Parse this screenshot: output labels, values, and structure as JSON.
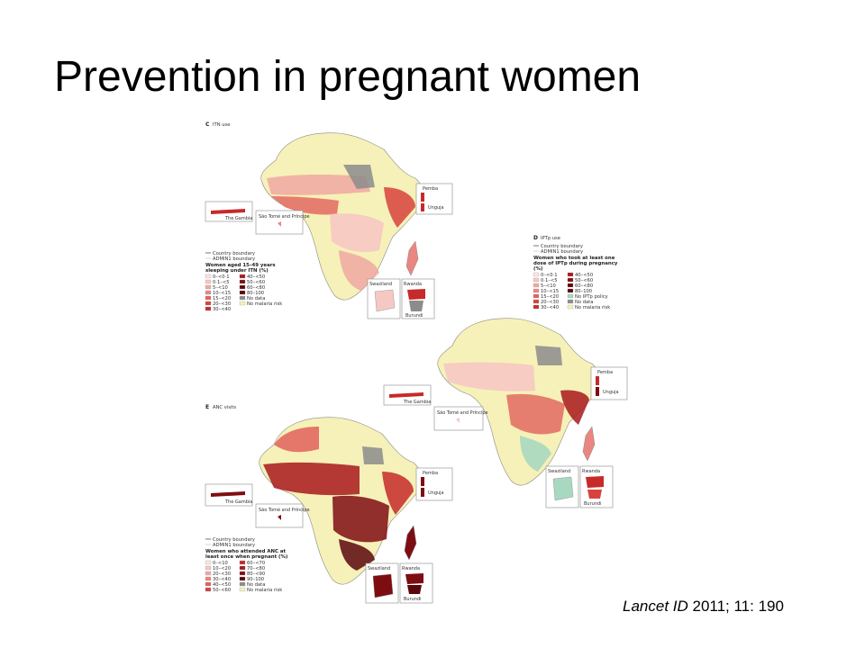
{
  "slide": {
    "title": "Prevention in pregnant women",
    "citation_journal": "Lancet ID",
    "citation_rest": " 2011; 11: 190"
  },
  "colors": {
    "background": "#ffffff",
    "no_malaria": "#f6f1b8",
    "no_data": "#8c8c8c",
    "boundary": "#9a9a9a",
    "no_iptp_policy": "#a8d8c0",
    "scale": [
      "#fbe5e3",
      "#f6c8c4",
      "#f0a8a2",
      "#e98680",
      "#e2625c",
      "#d8423d",
      "#c62a29",
      "#a8191c",
      "#7e0d12",
      "#5a070c"
    ]
  },
  "panels": [
    {
      "id": "C",
      "label": "C",
      "title": "ITN use",
      "legend_lines": [
        "Country boundary",
        "ADMIN1 boundary"
      ],
      "legend_title": "Women aged 15–49 years sleeping under ITN (%)",
      "legend_items": [
        "0–<0·1",
        "0·1–<5",
        "5–<10",
        "10–<15",
        "15–<20",
        "20–<30",
        "30–<40",
        "40–<50",
        "50–<60",
        "60–<80",
        "80–100",
        "No data",
        "No malaria risk"
      ],
      "insets": {
        "gambia": "The Gambia",
        "saotome": "São Tomé and Príncipe",
        "pemba": "Pemba",
        "unguja": "Unguja",
        "swaziland": "Swaziland",
        "rwanda": "Rwanda",
        "burundi": "Burundi"
      }
    },
    {
      "id": "D",
      "label": "D",
      "title": "IPTp use",
      "legend_lines": [
        "Country boundary",
        "ADMIN1 boundary"
      ],
      "legend_title": "Women who took at least one dose of IPTp during pregnancy (%)",
      "legend_items": [
        "0–<0·1",
        "0·1–<5",
        "5–<10",
        "10–<15",
        "15–<20",
        "20–<30",
        "30–<40",
        "40–<50",
        "50–<60",
        "60–<80",
        "80–100",
        "No IPTp policy",
        "No data",
        "No malaria risk"
      ],
      "insets": {
        "gambia": "The Gambia",
        "saotome": "São Tomé and Príncipe",
        "pemba": "Pemba",
        "unguja": "Unguja",
        "swaziland": "Swaziland",
        "rwanda": "Rwanda",
        "burundi": "Burundi"
      }
    },
    {
      "id": "E",
      "label": "E",
      "title": "ANC visits",
      "legend_lines": [
        "Country boundary",
        "ADMIN1 boundary"
      ],
      "legend_title": "Women who attended ANC at least once when pregnant (%)",
      "legend_items": [
        "0–<10",
        "10–<20",
        "20–<30",
        "30–<40",
        "40–<50",
        "50–<60",
        "60–<70",
        "70–<80",
        "80–<90",
        "90–100",
        "No data",
        "No malaria risk"
      ],
      "insets": {
        "gambia": "The Gambia",
        "saotome": "São Tomé and Príncipe",
        "pemba": "Pemba",
        "unguja": "Unguja",
        "swaziland": "Swaziland",
        "rwanda": "Rwanda",
        "burundi": "Burundi"
      }
    }
  ]
}
